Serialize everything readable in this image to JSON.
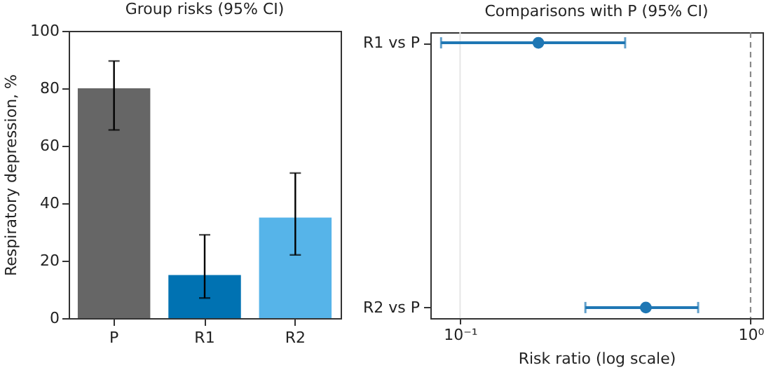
{
  "chart_data": [
    {
      "type": "bar",
      "title": "Group risks (95% CI)",
      "ylabel": "Respiratory depression, %",
      "categories": [
        "P",
        "R1",
        "R2"
      ],
      "values": [
        80,
        15,
        35
      ],
      "colors": [
        "#666666",
        "#0072b2",
        "#56b4e9"
      ],
      "errors": [
        [
          65.5,
          89.5
        ],
        [
          7,
          29
        ],
        [
          22,
          50.5
        ]
      ],
      "ylim": [
        0,
        100
      ],
      "yticks": [
        0,
        20,
        40,
        60,
        80,
        100
      ]
    },
    {
      "type": "scatter",
      "orientation": "horizontal",
      "title": "Comparisons with P (95% CI)",
      "xlabel": "Risk ratio (log scale)",
      "categories": [
        "R1 vs P",
        "R2 vs P"
      ],
      "values": [
        0.186,
        0.436
      ],
      "color": "#1f77b4",
      "errors": [
        [
          0.086,
          0.37
        ],
        [
          0.27,
          0.66
        ]
      ],
      "log": "x",
      "xlim": [
        0.079,
        1.1
      ],
      "xticks": [
        {
          "value": 0.1,
          "label": "10⁻¹"
        },
        {
          "value": 1,
          "label": "10⁰"
        }
      ],
      "marker": "circle",
      "ref_lines": [
        {
          "axis": "x",
          "value": 0.1,
          "color": "#e6e6e6",
          "line_style": "solid"
        },
        {
          "axis": "x",
          "value": 1,
          "color": "#808080",
          "line_style": "dashed"
        }
      ]
    }
  ]
}
